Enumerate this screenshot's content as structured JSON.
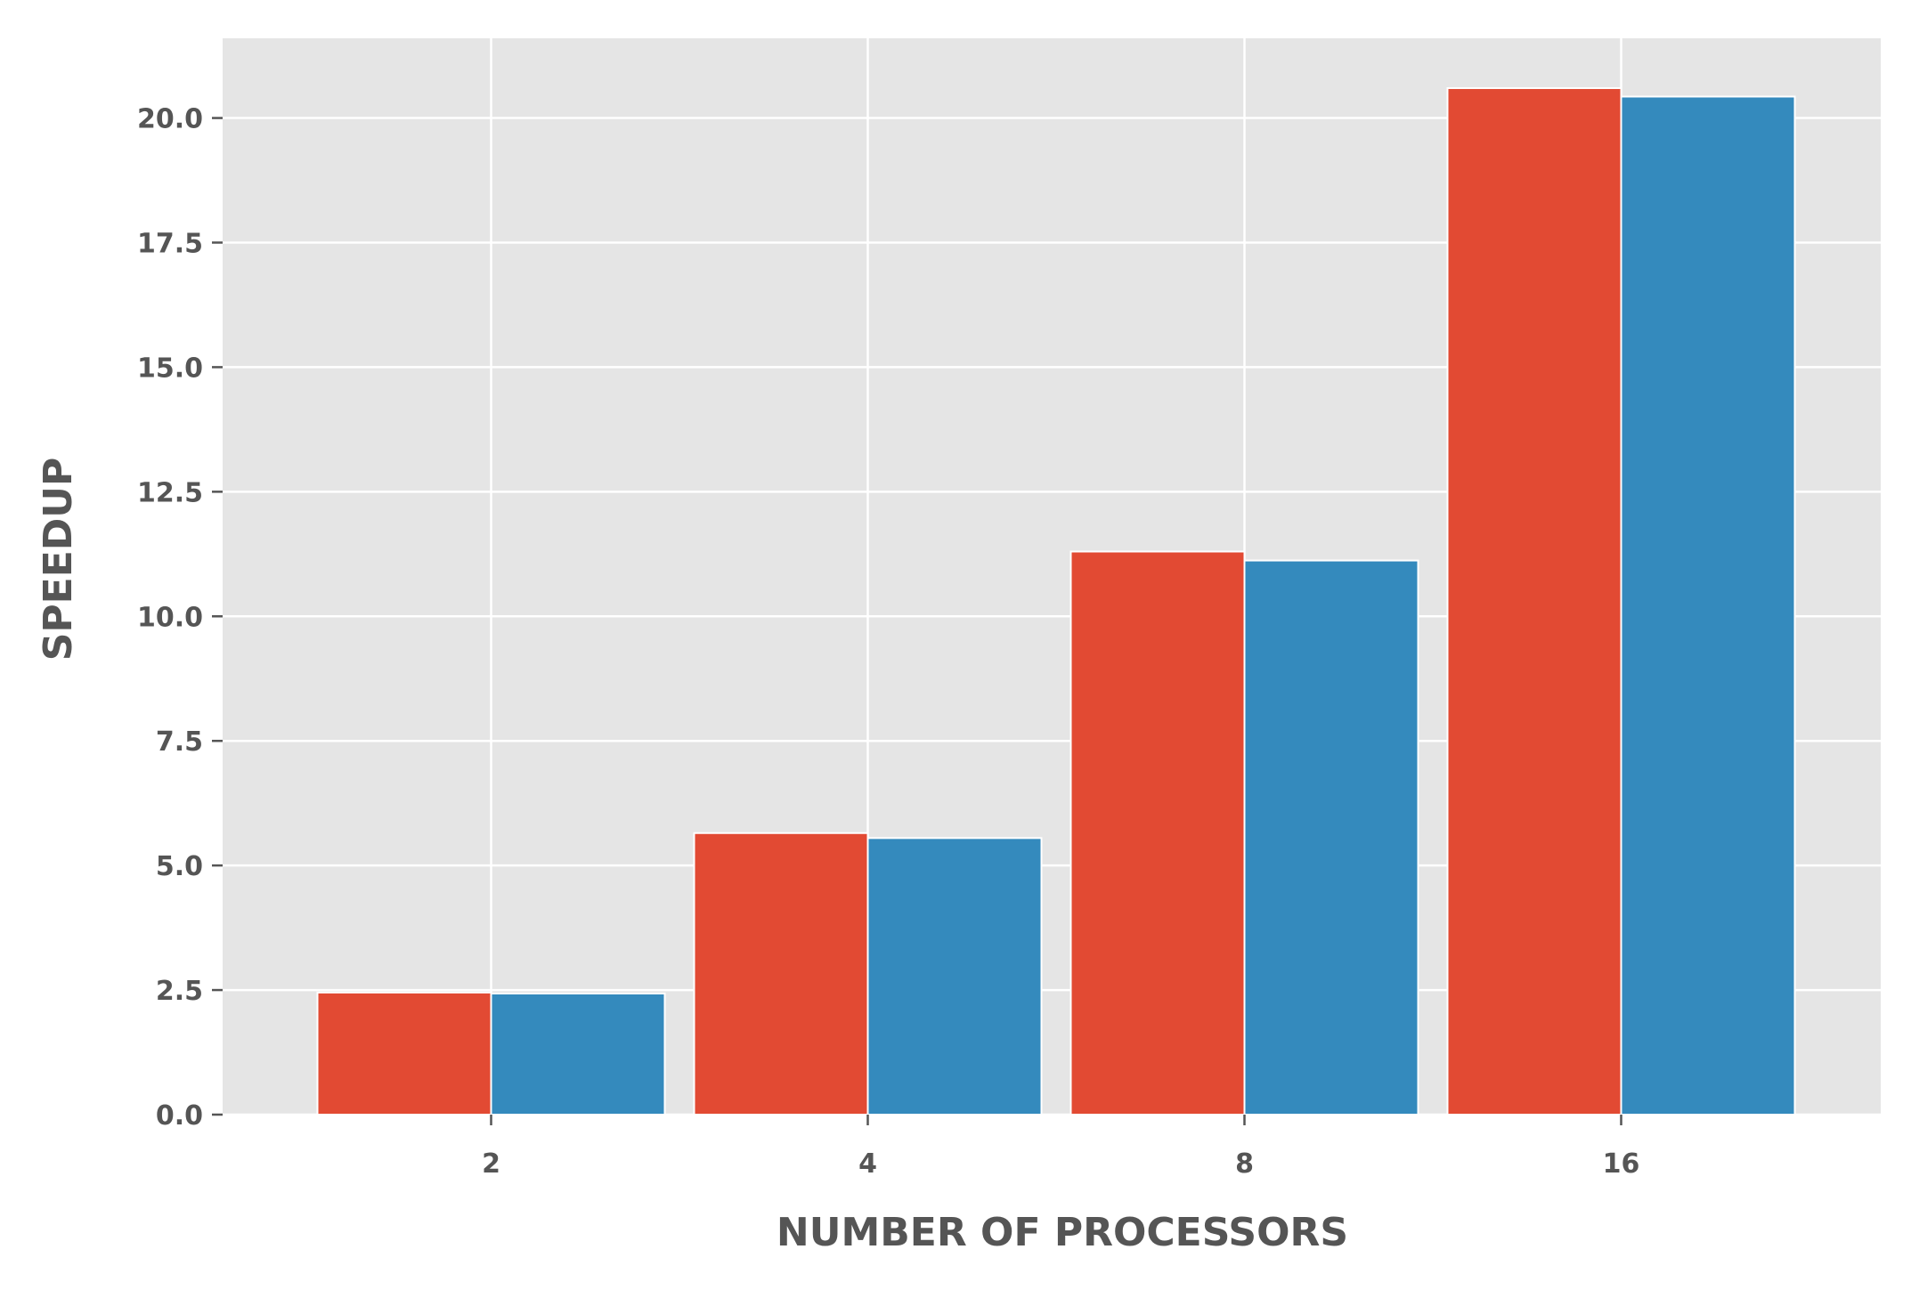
{
  "chart_data": {
    "type": "bar",
    "title": "",
    "xlabel": "NUMBER OF PROCESSORS",
    "ylabel": "SPEEDUP",
    "categories": [
      "2",
      "4",
      "8",
      "16"
    ],
    "series": [
      {
        "values": [
          2.45,
          5.65,
          11.3,
          20.6
        ],
        "color": "#e24a33"
      },
      {
        "values": [
          2.43,
          5.55,
          11.12,
          20.43
        ],
        "color": "#348abd"
      }
    ],
    "ylim": [
      0,
      21.6
    ],
    "yticks": [
      "0.0",
      "2.5",
      "5.0",
      "7.5",
      "10.0",
      "12.5",
      "15.0",
      "17.5",
      "20.0"
    ],
    "grid": true,
    "background_color": "#e5e5e5",
    "grid_color": "#ffffff",
    "text_color": "#555555"
  }
}
